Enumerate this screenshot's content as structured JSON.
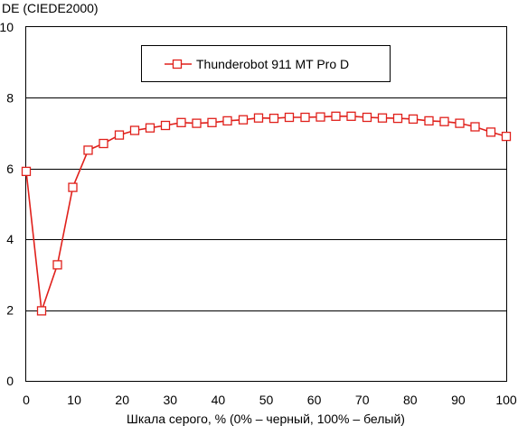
{
  "chart_data": {
    "type": "line",
    "title": "",
    "ylabel": "DE (CIEDE2000)",
    "xlabel": "Шкала серого, % (0% – черный, 100% – белый)",
    "xlim": [
      0,
      100
    ],
    "ylim": [
      0,
      10
    ],
    "x_ticks": [
      "0",
      "10",
      "20",
      "30",
      "40",
      "50",
      "60",
      "70",
      "80",
      "90",
      "100"
    ],
    "y_ticks": [
      "0",
      "2",
      "4",
      "6",
      "8",
      "10"
    ],
    "grid": "horizontal",
    "legend_position": "top-center",
    "series": [
      {
        "name": "Thunderobot 911 MT Pro D",
        "color": "#e0201b",
        "marker": "square",
        "x": [
          0,
          3.2,
          6.5,
          9.7,
          12.9,
          16.1,
          19.4,
          22.6,
          25.8,
          29,
          32.3,
          35.5,
          38.7,
          41.9,
          45.2,
          48.4,
          51.6,
          54.8,
          58.1,
          61.3,
          64.5,
          67.7,
          71,
          74.2,
          77.4,
          80.6,
          83.9,
          87.1,
          90.3,
          93.5,
          96.8,
          100
        ],
        "values": [
          5.92,
          1.98,
          3.28,
          5.47,
          6.52,
          6.71,
          6.95,
          7.08,
          7.15,
          7.22,
          7.3,
          7.28,
          7.3,
          7.35,
          7.38,
          7.43,
          7.42,
          7.45,
          7.45,
          7.46,
          7.48,
          7.48,
          7.45,
          7.43,
          7.42,
          7.4,
          7.35,
          7.33,
          7.28,
          7.18,
          7.03,
          6.91
        ]
      }
    ]
  }
}
